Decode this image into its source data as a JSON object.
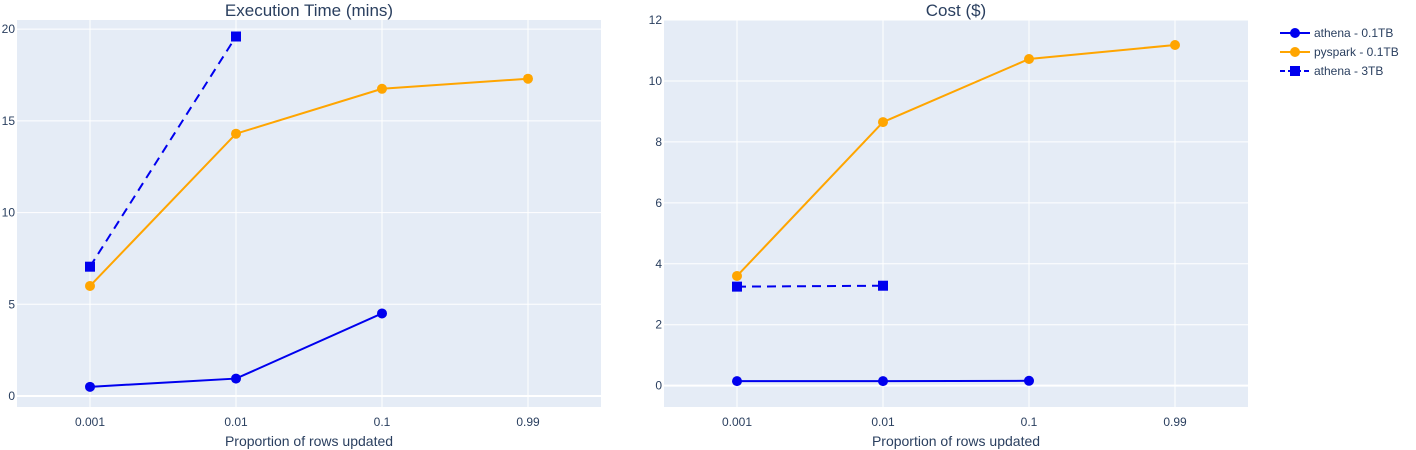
{
  "chart_data": [
    {
      "type": "line",
      "title": "Execution Time (mins)",
      "xlabel": "Proportion of rows updated",
      "ylabel": "",
      "x_type": "category",
      "categories": [
        "0.001",
        "0.01",
        "0.1",
        "0.99"
      ],
      "ylim": [
        -0.6,
        20.5
      ],
      "yticks": [
        0,
        5,
        10,
        15,
        20
      ],
      "grid": true,
      "series": [
        {
          "name": "athena - 0.1TB",
          "x": [
            "0.001",
            "0.01",
            "0.1"
          ],
          "values": [
            0.5,
            0.95,
            4.5
          ],
          "color": "#0000ee",
          "dash": "solid",
          "marker": "circle"
        },
        {
          "name": "pyspark - 0.1TB",
          "x": [
            "0.001",
            "0.01",
            "0.1",
            "0.99"
          ],
          "values": [
            6.0,
            14.3,
            16.75,
            17.3
          ],
          "color": "#ffa500",
          "dash": "solid",
          "marker": "circle"
        },
        {
          "name": "athena - 3TB",
          "x": [
            "0.001",
            "0.01"
          ],
          "values": [
            7.05,
            19.6
          ],
          "color": "#0000ee",
          "dash": "dash",
          "marker": "square"
        }
      ]
    },
    {
      "type": "line",
      "title": "Cost ($)",
      "xlabel": "Proportion of rows updated",
      "ylabel": "",
      "x_type": "category",
      "categories": [
        "0.001",
        "0.01",
        "0.1",
        "0.99"
      ],
      "ylim": [
        -0.7,
        12
      ],
      "yticks": [
        0,
        2,
        4,
        6,
        8,
        10,
        12
      ],
      "grid": true,
      "series": [
        {
          "name": "athena - 0.1TB",
          "x": [
            "0.001",
            "0.01",
            "0.1"
          ],
          "values": [
            0.15,
            0.15,
            0.16
          ],
          "color": "#0000ee",
          "dash": "solid",
          "marker": "circle"
        },
        {
          "name": "pyspark - 0.1TB",
          "x": [
            "0.001",
            "0.01",
            "0.1",
            "0.99"
          ],
          "values": [
            3.6,
            8.65,
            10.72,
            11.18
          ],
          "color": "#ffa500",
          "dash": "solid",
          "marker": "circle"
        },
        {
          "name": "athena - 3TB",
          "x": [
            "0.001",
            "0.01"
          ],
          "values": [
            3.25,
            3.28
          ],
          "color": "#0000ee",
          "dash": "dash",
          "marker": "square"
        }
      ]
    }
  ],
  "legend": {
    "placement": "top-right",
    "items": [
      {
        "label": "athena - 0.1TB",
        "color": "#0000ee",
        "dash": "solid",
        "marker": "circle"
      },
      {
        "label": "pyspark - 0.1TB",
        "color": "#ffa500",
        "dash": "solid",
        "marker": "circle"
      },
      {
        "label": "athena - 3TB",
        "color": "#0000ee",
        "dash": "dash",
        "marker": "square"
      }
    ]
  },
  "colors": {
    "plot_background": "#e5ecf6",
    "grid": "#ffffff",
    "text": "#2a3f5f"
  }
}
